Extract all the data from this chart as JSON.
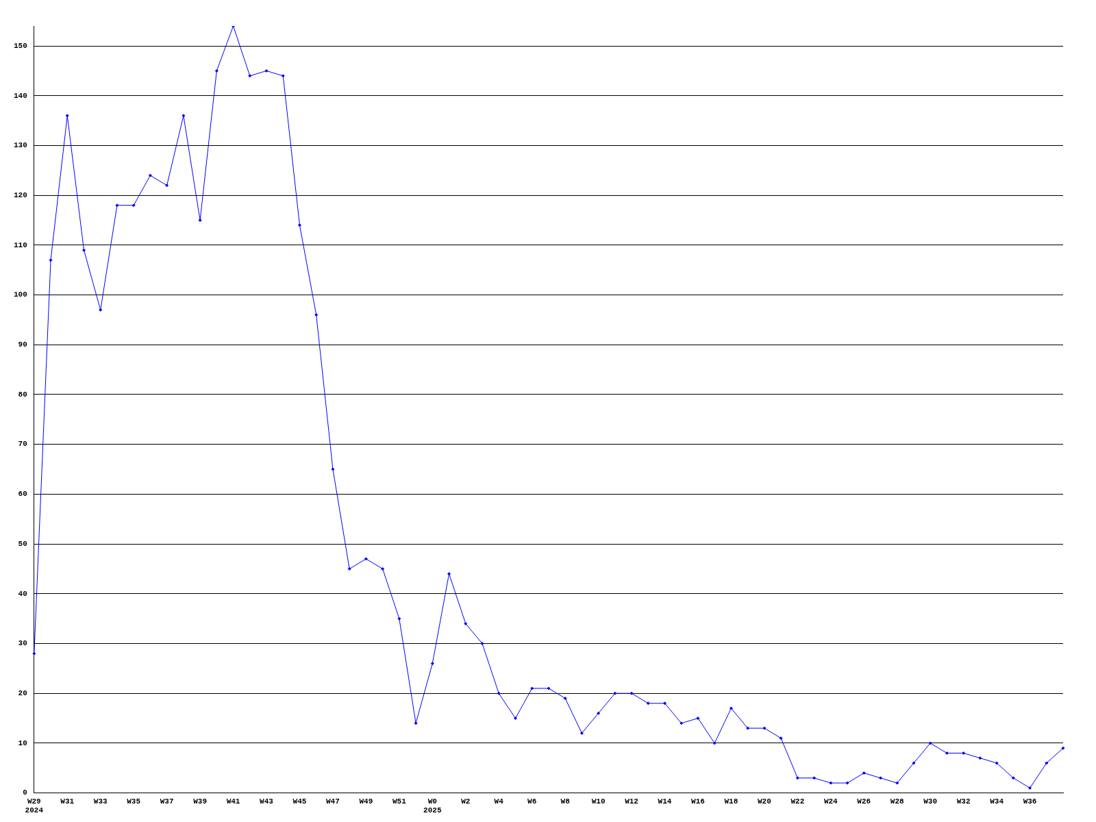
{
  "chart_data": {
    "type": "line",
    "categories": [
      "W29\n2024",
      null,
      "W31",
      null,
      "W33",
      null,
      "W35",
      null,
      "W37",
      null,
      "W39",
      null,
      "W41",
      null,
      "W43",
      null,
      "W45",
      null,
      "W47",
      null,
      "W49",
      null,
      "W51",
      null,
      "W0\n2025",
      null,
      "W2",
      null,
      "W4",
      null,
      "W6",
      null,
      "W8",
      null,
      "W10",
      null,
      "W12",
      null,
      "W14",
      null,
      "W16",
      null,
      "W18",
      null,
      "W20",
      null,
      "W22",
      null,
      "W24",
      null,
      "W26",
      null,
      "W28",
      null,
      "W30",
      null,
      "W32",
      null,
      "W34",
      null,
      "W36",
      null,
      null
    ],
    "series": [
      {
        "color": "#0000ff",
        "values": [
          28,
          107,
          136,
          109,
          97,
          118,
          118,
          124,
          122,
          136,
          115,
          145,
          154,
          144,
          145,
          144,
          114,
          96,
          65,
          45,
          47,
          45,
          35,
          14,
          26,
          44,
          34,
          30,
          20,
          15,
          21,
          21,
          19,
          12,
          16,
          20,
          20,
          18,
          18,
          14,
          15,
          10,
          17,
          13,
          13,
          11,
          3,
          3,
          2,
          2,
          4,
          3,
          2,
          6,
          10,
          8,
          8,
          7,
          6,
          3,
          1,
          6,
          9
        ]
      }
    ],
    "ylim": [
      0,
      154
    ],
    "yticks": [
      0,
      10,
      20,
      30,
      40,
      50,
      60,
      70,
      80,
      90,
      100,
      110,
      120,
      130,
      140,
      150
    ],
    "grid": "y",
    "legend": false,
    "marker": "diamond",
    "line_style": "solid"
  }
}
